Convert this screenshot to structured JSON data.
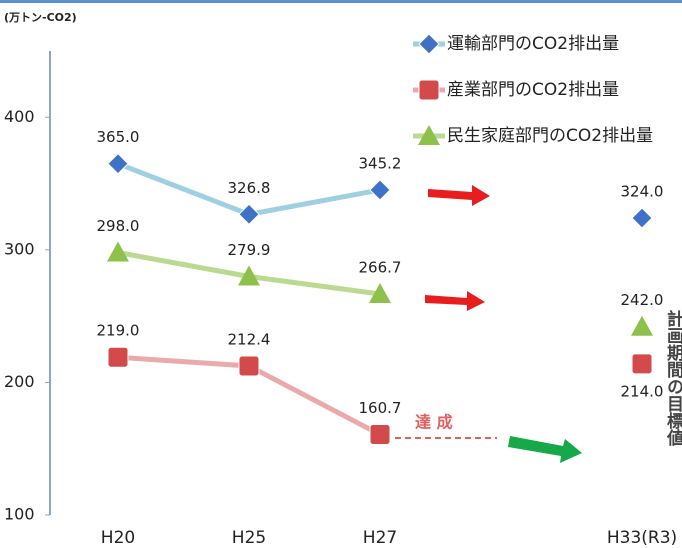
{
  "chart_data": {
    "type": "line",
    "y_label": "(万トン-CO2)",
    "categories": [
      "H20",
      "H25",
      "H27",
      null,
      "H33(R3)"
    ],
    "series": [
      {
        "name": "運輸部門のCO2排出量",
        "color": "#3f72c6",
        "line_color": "#9fd0e2",
        "marker": "diamond",
        "values": [
          365.0,
          326.8,
          345.2,
          null,
          324.0
        ],
        "value_labels": [
          "365.0",
          "326.8",
          "345.2",
          null,
          "324.0"
        ]
      },
      {
        "name": "産業部門のCO2排出量",
        "color": "#d24a4a",
        "line_color": "#eaaaaa",
        "marker": "square",
        "values": [
          219.0,
          212.4,
          160.7,
          null,
          214.0
        ],
        "value_labels": [
          "219.0",
          "212.4",
          "160.7",
          null,
          "214.0"
        ]
      },
      {
        "name": "民生家庭部門のCO2排出量",
        "color": "#8dc14b",
        "line_color": "#bad991",
        "marker": "triangle",
        "values": [
          298.0,
          279.9,
          266.7,
          null,
          242.0
        ],
        "value_labels": [
          "298.0",
          "279.9",
          "266.7",
          null,
          "242.0"
        ]
      }
    ],
    "annotations": [
      "達 成",
      "計画期間の目標値"
    ],
    "ylim": [
      100,
      450
    ],
    "yticks": [
      100,
      200,
      300,
      400
    ]
  }
}
